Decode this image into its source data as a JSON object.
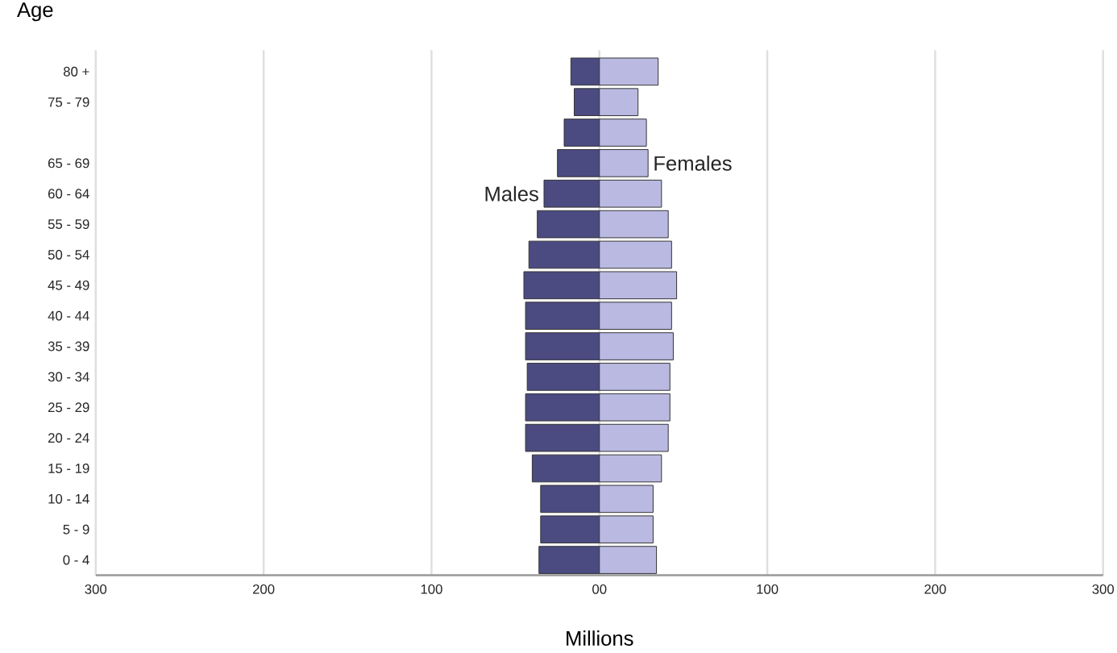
{
  "chart_data": {
    "type": "bar",
    "orientation": "horizontal",
    "ylabel": "Age",
    "xlabel": "Millions",
    "categories": [
      "80 +",
      "75 - 79",
      null,
      "65 - 69",
      "60 - 64",
      "55 - 59",
      "50 - 54",
      "45 - 49",
      "40 - 44",
      "35 - 39",
      "30 - 34",
      "25 - 29",
      "20 - 24",
      "15 - 19",
      "10 - 14",
      "5 - 9",
      "0 - 4"
    ],
    "series": [
      {
        "name": "Males",
        "color": "#4b4b82",
        "values": [
          -17,
          -15,
          -21,
          -25,
          -33,
          -37,
          -42,
          -45,
          -44,
          -44,
          -43,
          -44,
          -44,
          -40,
          -35,
          -35,
          -36
        ]
      },
      {
        "name": "Females",
        "color": "#b9b9e2",
        "values": [
          35,
          23,
          28,
          29,
          37,
          41,
          43,
          46,
          43,
          44,
          42,
          42,
          41,
          37,
          32,
          32,
          34
        ]
      }
    ],
    "xlim": [
      -300,
      300
    ],
    "xticks": [
      {
        "value": -300,
        "label": "300"
      },
      {
        "value": -200,
        "label": "200"
      },
      {
        "value": -100,
        "label": "100"
      },
      {
        "value": 0,
        "label": "00"
      },
      100,
      200,
      300
    ],
    "grid": "x",
    "legend": false,
    "stacked": true
  }
}
